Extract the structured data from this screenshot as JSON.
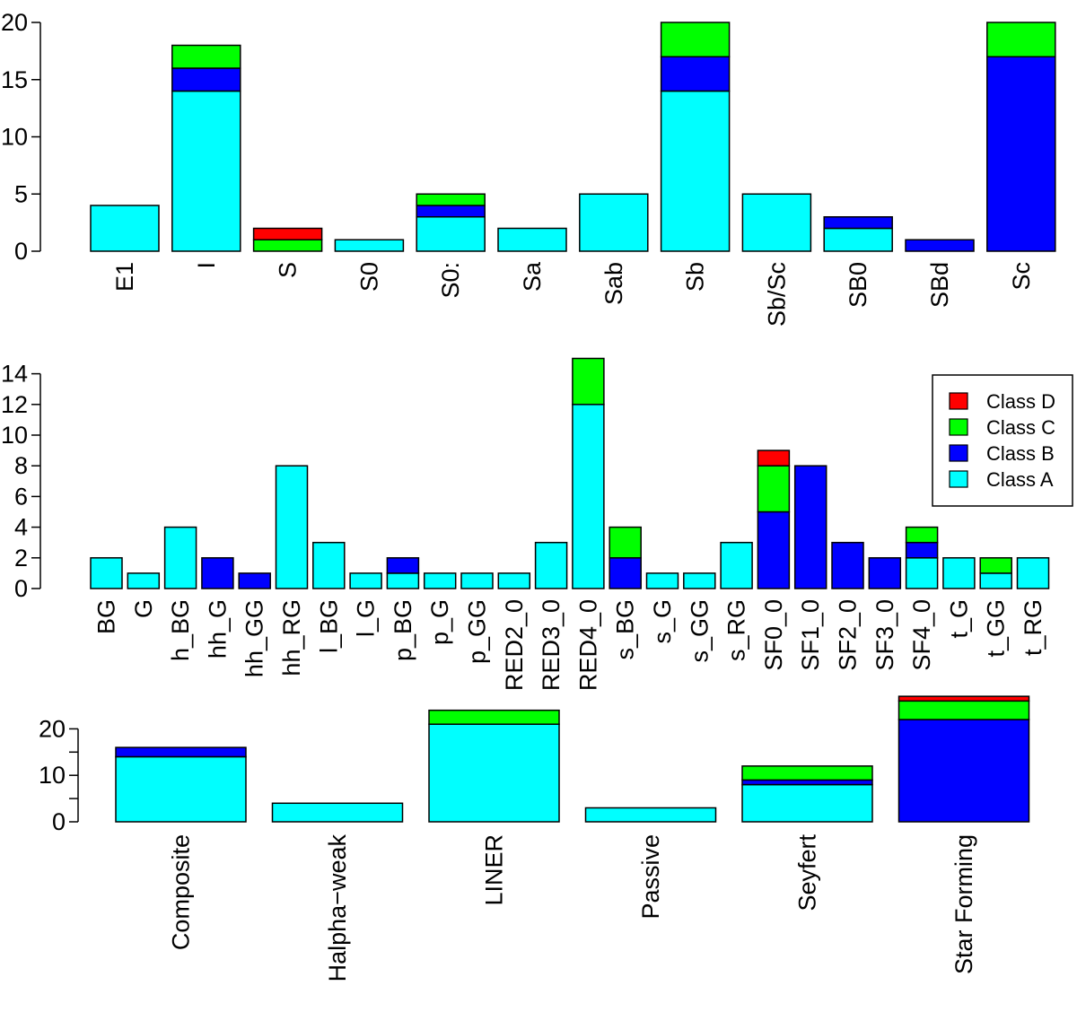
{
  "colors": {
    "class_a": "#00FFFF",
    "class_b": "#0000FF",
    "class_c": "#00FF00",
    "class_d": "#FF0000",
    "stroke": "#000000"
  },
  "legend": {
    "entries": [
      {
        "label": "Class D",
        "color": "#FF0000"
      },
      {
        "label": "Class C",
        "color": "#00FF00"
      },
      {
        "label": "Class B",
        "color": "#0000FF"
      },
      {
        "label": "Class A",
        "color": "#00FFFF"
      }
    ],
    "placement": "top-right of middle panel"
  },
  "chart_data": [
    {
      "type": "bar",
      "stacked": true,
      "title": "",
      "xlabel": "",
      "ylabel": "",
      "ylim": [
        0,
        20
      ],
      "yticks": [
        0,
        5,
        10,
        15,
        20
      ],
      "categories": [
        "E1",
        "I",
        "S",
        "S0",
        "S0:",
        "Sa",
        "Sab",
        "Sb",
        "Sb/Sc",
        "SB0",
        "SBd",
        "Sc"
      ],
      "series": [
        {
          "name": "Class A",
          "values": [
            4,
            14,
            0,
            1,
            3,
            2,
            5,
            14,
            5,
            2,
            0,
            0
          ]
        },
        {
          "name": "Class B",
          "values": [
            0,
            2,
            0,
            0,
            1,
            0,
            0,
            3,
            0,
            1,
            1,
            17
          ]
        },
        {
          "name": "Class C",
          "values": [
            0,
            2,
            1,
            0,
            1,
            0,
            0,
            3,
            0,
            0,
            0,
            3
          ]
        },
        {
          "name": "Class D",
          "values": [
            0,
            0,
            1,
            0,
            0,
            0,
            0,
            0,
            0,
            0,
            0,
            0
          ]
        }
      ]
    },
    {
      "type": "bar",
      "stacked": true,
      "title": "",
      "xlabel": "",
      "ylabel": "",
      "ylim": [
        0,
        14
      ],
      "yticks": [
        0,
        2,
        4,
        6,
        8,
        10,
        12,
        14
      ],
      "categories": [
        "BG",
        "G",
        "h_BG",
        "hh_G",
        "hh_GG",
        "hh_RG",
        "l_BG",
        "l_G",
        "p_BG",
        "p_G",
        "p_GG",
        "RED2_0",
        "RED3_0",
        "RED4_0",
        "s_BG",
        "s_G",
        "s_GG",
        "s_RG",
        "SF0_0",
        "SF1_0",
        "SF2_0",
        "SF3_0",
        "SF4_0",
        "t_G",
        "t_GG",
        "t_RG"
      ],
      "series": [
        {
          "name": "Class A",
          "values": [
            2,
            1,
            4,
            0,
            0,
            8,
            3,
            1,
            1,
            1,
            1,
            1,
            3,
            12,
            0,
            1,
            1,
            3,
            0,
            0,
            0,
            0,
            2,
            2,
            1,
            2
          ]
        },
        {
          "name": "Class B",
          "values": [
            0,
            0,
            0,
            2,
            1,
            0,
            0,
            0,
            1,
            0,
            0,
            0,
            0,
            0,
            2,
            0,
            0,
            0,
            5,
            8,
            3,
            2,
            1,
            0,
            0,
            0
          ]
        },
        {
          "name": "Class C",
          "values": [
            0,
            0,
            0,
            0,
            0,
            0,
            0,
            0,
            0,
            0,
            0,
            0,
            0,
            3,
            2,
            0,
            0,
            0,
            3,
            0,
            0,
            0,
            1,
            0,
            1,
            0
          ]
        },
        {
          "name": "Class D",
          "values": [
            0,
            0,
            0,
            0,
            0,
            0,
            0,
            0,
            0,
            0,
            0,
            0,
            0,
            0,
            0,
            0,
            0,
            0,
            1,
            0,
            0,
            0,
            0,
            0,
            0,
            0
          ]
        }
      ]
    },
    {
      "type": "bar",
      "stacked": true,
      "title": "",
      "xlabel": "",
      "ylabel": "",
      "ylim": [
        0,
        27
      ],
      "yticks": [
        0,
        10,
        20
      ],
      "minor_yticks": [
        5,
        15,
        25
      ],
      "categories": [
        "Composite",
        "Halpha−weak",
        "LINER",
        "Passive",
        "Seyfert",
        "Star Forming"
      ],
      "series": [
        {
          "name": "Class A",
          "values": [
            14,
            4,
            21,
            3,
            8,
            0
          ]
        },
        {
          "name": "Class B",
          "values": [
            2,
            0,
            0,
            0,
            1,
            22
          ]
        },
        {
          "name": "Class C",
          "values": [
            0,
            0,
            3,
            0,
            3,
            4
          ]
        },
        {
          "name": "Class D",
          "values": [
            0,
            0,
            0,
            0,
            0,
            1
          ]
        }
      ]
    }
  ]
}
